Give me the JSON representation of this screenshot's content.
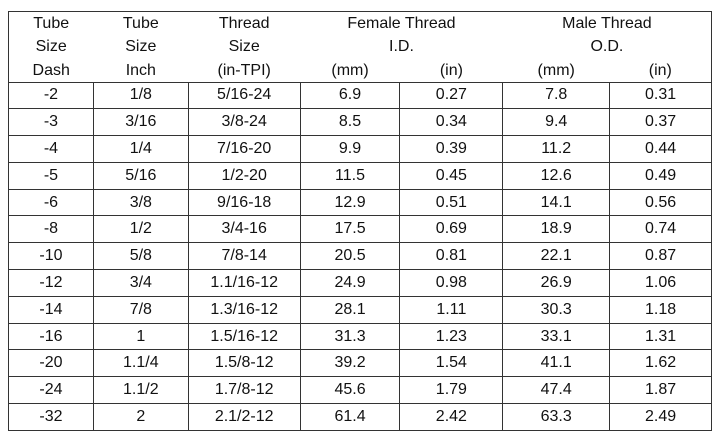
{
  "header": {
    "col1": [
      "Tube",
      "Size",
      "Dash"
    ],
    "col2": [
      "Tube",
      "Size",
      "Inch"
    ],
    "col3": [
      "Thread",
      "Size",
      "(in-TPI)"
    ],
    "female": [
      "Female Thread",
      "I.D."
    ],
    "male": [
      "Male Thread",
      "O.D."
    ],
    "units": [
      "(mm)",
      "(in)",
      "(mm)",
      "(in)"
    ]
  },
  "rows": [
    [
      "-2",
      "1/8",
      "5/16-24",
      "6.9",
      "0.27",
      "7.8",
      "0.31"
    ],
    [
      "-3",
      "3/16",
      "3/8-24",
      "8.5",
      "0.34",
      "9.4",
      "0.37"
    ],
    [
      "-4",
      "1/4",
      "7/16-20",
      "9.9",
      "0.39",
      "11.2",
      "0.44"
    ],
    [
      "-5",
      "5/16",
      "1/2-20",
      "11.5",
      "0.45",
      "12.6",
      "0.49"
    ],
    [
      "-6",
      "3/8",
      "9/16-18",
      "12.9",
      "0.51",
      "14.1",
      "0.56"
    ],
    [
      "-8",
      "1/2",
      "3/4-16",
      "17.5",
      "0.69",
      "18.9",
      "0.74"
    ],
    [
      "-10",
      "5/8",
      "7/8-14",
      "20.5",
      "0.81",
      "22.1",
      "0.87"
    ],
    [
      "-12",
      "3/4",
      "1.1/16-12",
      "24.9",
      "0.98",
      "26.9",
      "1.06"
    ],
    [
      "-14",
      "7/8",
      "1.3/16-12",
      "28.1",
      "1.11",
      "30.3",
      "1.18"
    ],
    [
      "-16",
      "1",
      "1.5/16-12",
      "31.3",
      "1.23",
      "33.1",
      "1.31"
    ],
    [
      "-20",
      "1.1/4",
      "1.5/8-12",
      "39.2",
      "1.54",
      "41.1",
      "1.62"
    ],
    [
      "-24",
      "1.1/2",
      "1.7/8-12",
      "45.6",
      "1.79",
      "47.4",
      "1.87"
    ],
    [
      "-32",
      "2",
      "2.1/2-12",
      "61.4",
      "2.42",
      "63.3",
      "2.49"
    ]
  ]
}
